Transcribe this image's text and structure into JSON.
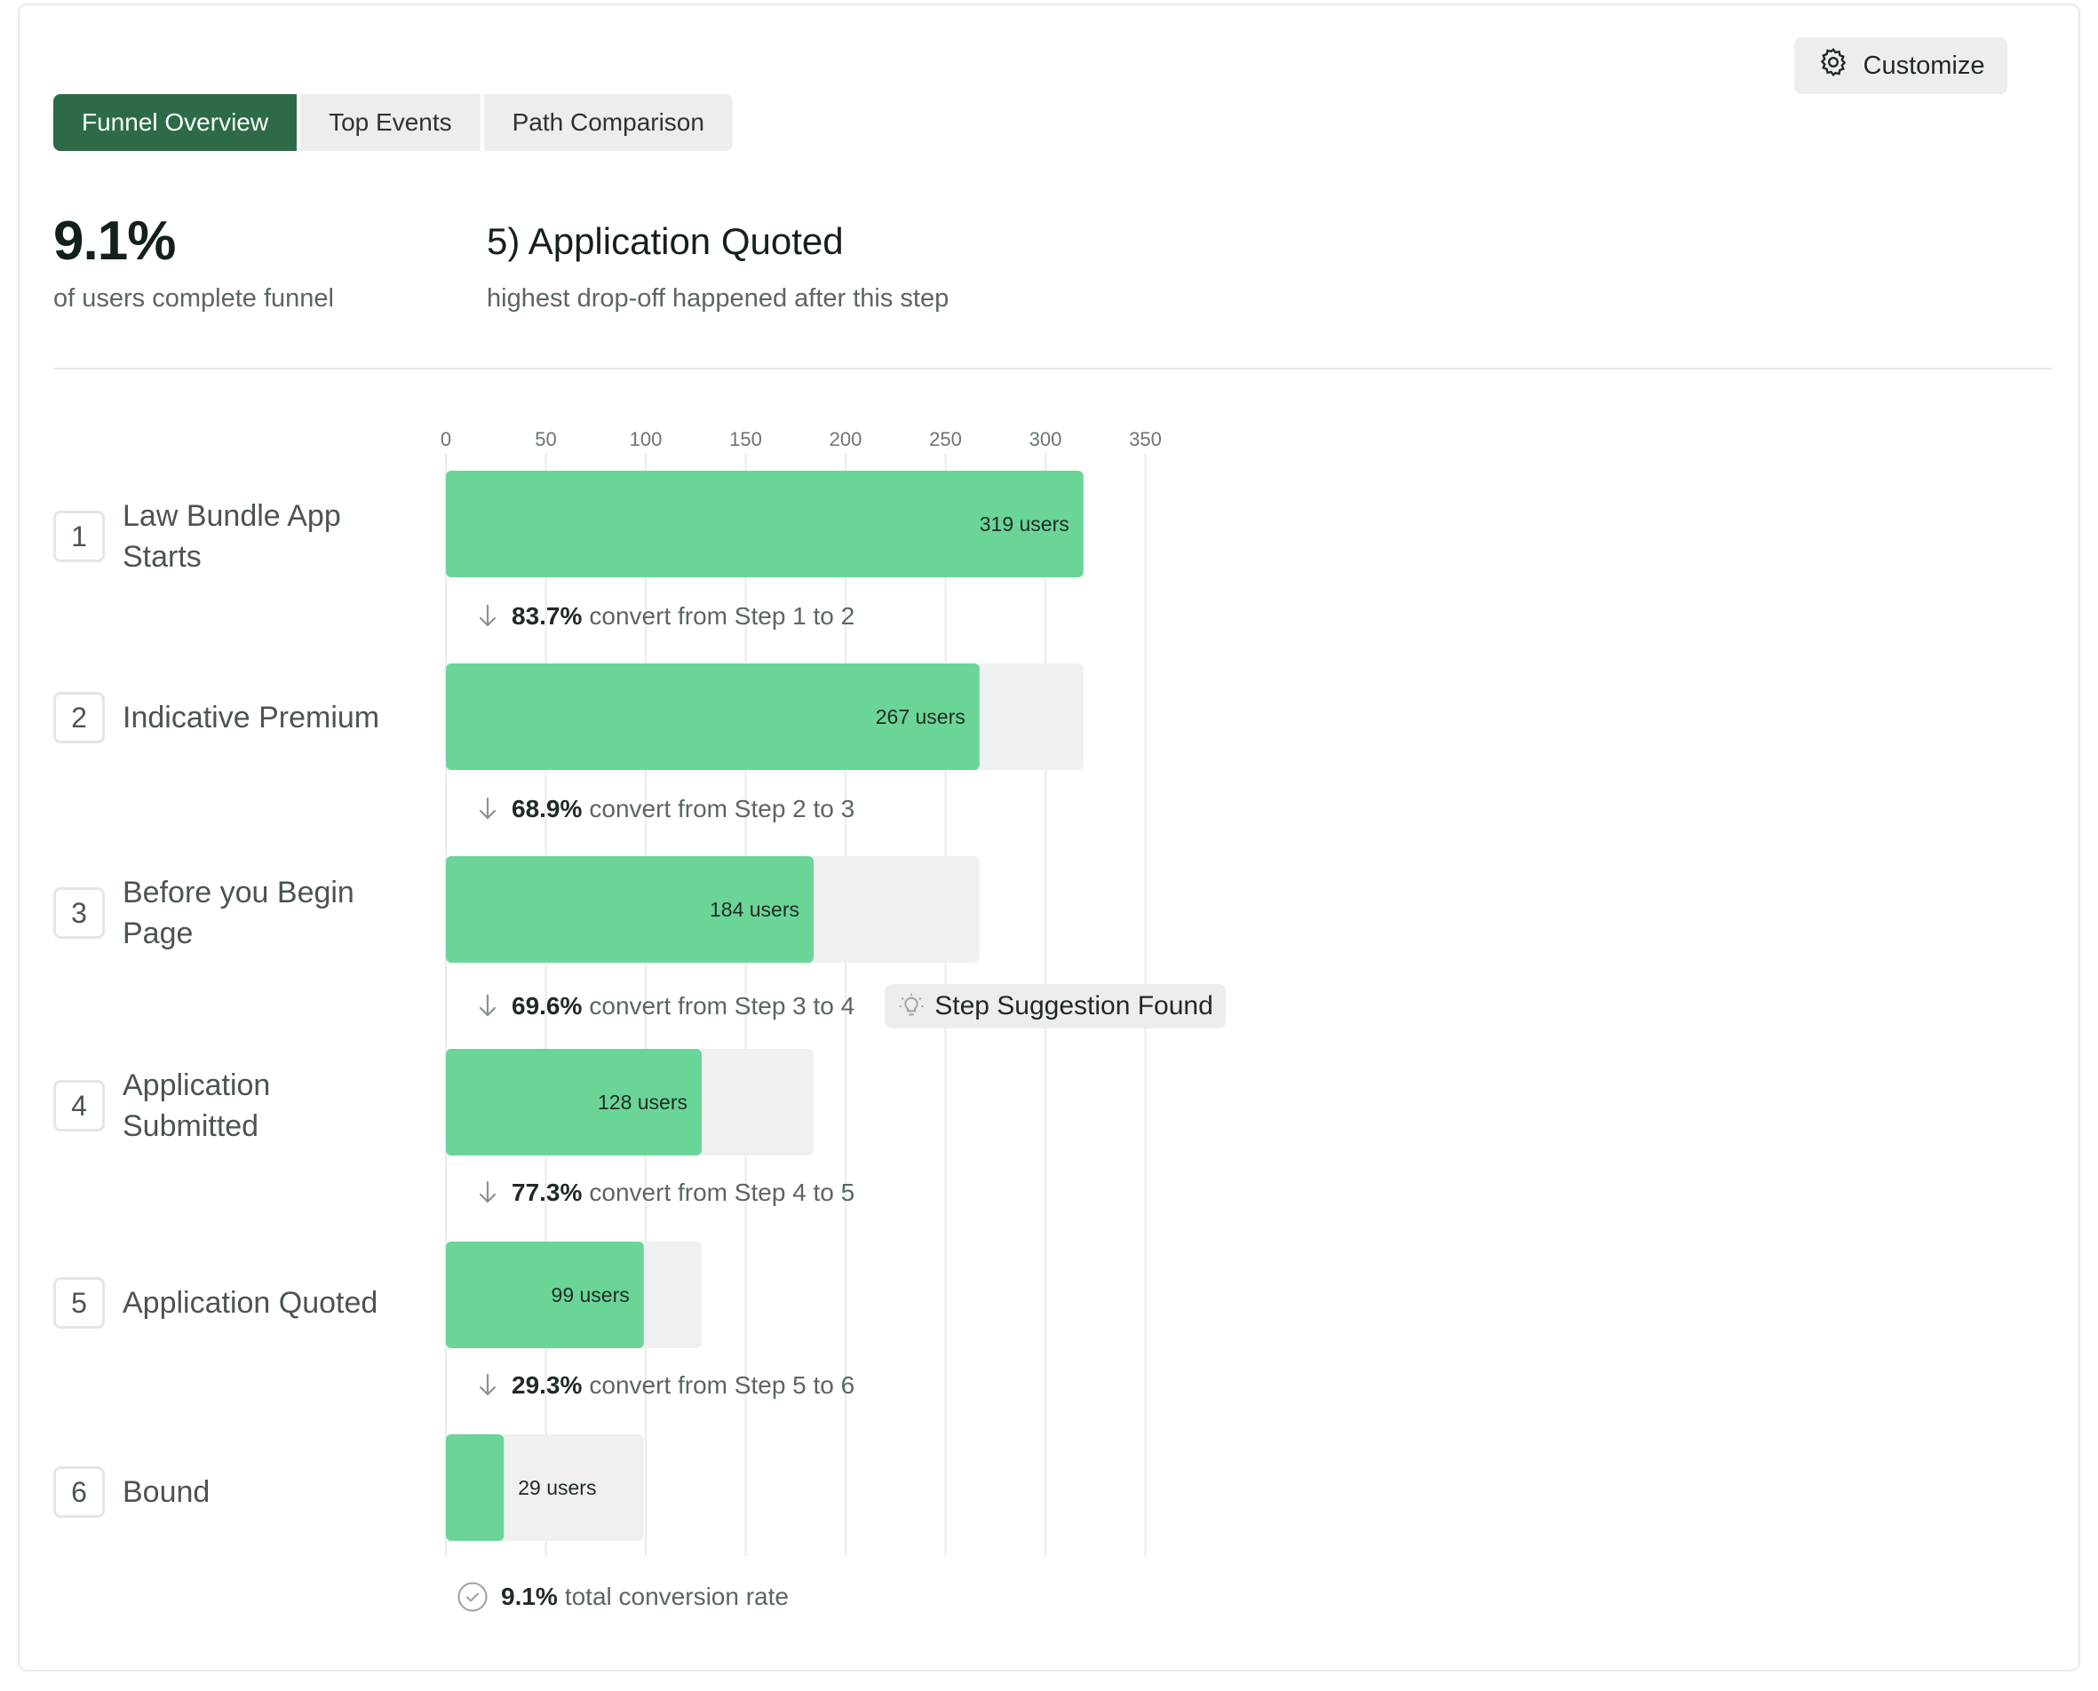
{
  "tabs": [
    {
      "label": "Funnel Overview",
      "active": true
    },
    {
      "label": "Top Events",
      "active": false
    },
    {
      "label": "Path Comparison",
      "active": false
    }
  ],
  "customize_label": "Customize",
  "summary": {
    "completion_value": "9.1%",
    "completion_caption": "of users complete funnel",
    "dropoff_title": "5) Application Quoted",
    "dropoff_caption": "highest drop-off happened after this step"
  },
  "steps": [
    {
      "num": "1",
      "name": "Law Bundle App Starts"
    },
    {
      "num": "2",
      "name": "Indicative Premium"
    },
    {
      "num": "3",
      "name": "Before you Begin Page"
    },
    {
      "num": "4",
      "name": "Application Submitted"
    },
    {
      "num": "5",
      "name": "Application Quoted"
    },
    {
      "num": "6",
      "name": "Bound"
    }
  ],
  "conversions": [
    {
      "pct": "83.7%",
      "text": "convert from Step 1 to 2"
    },
    {
      "pct": "68.9%",
      "text": "convert from Step 2 to 3"
    },
    {
      "pct": "69.6%",
      "text": "convert from Step 3 to 4"
    },
    {
      "pct": "77.3%",
      "text": "convert from Step 4 to 5"
    },
    {
      "pct": "29.3%",
      "text": "convert from Step 5 to 6"
    }
  ],
  "suggestion_label": "Step Suggestion Found",
  "total": {
    "pct": "9.1%",
    "text": "total conversion rate"
  },
  "colors": {
    "bar": "#6bd598",
    "track": "#eff0ef",
    "grid": "#e9ebea",
    "active_tab": "#2d6b48"
  },
  "chart_data": {
    "type": "bar",
    "orientation": "horizontal",
    "categories": [
      "Law Bundle App Starts",
      "Indicative Premium",
      "Before you Begin Page",
      "Application Submitted",
      "Application Quoted",
      "Bound"
    ],
    "values": [
      319,
      267,
      184,
      128,
      99,
      29
    ],
    "previous_step_values": [
      319,
      319,
      267,
      184,
      128,
      99
    ],
    "value_labels": [
      "319 users",
      "267 users",
      "184 users",
      "128 users",
      "99 users",
      "29 users"
    ],
    "xlim": [
      0,
      350
    ],
    "x_ticks": [
      0,
      50,
      100,
      150,
      200,
      250,
      300,
      350
    ],
    "grid": true
  }
}
